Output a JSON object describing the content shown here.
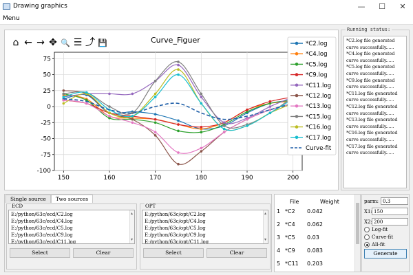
{
  "window": {
    "title": "Drawing graphics",
    "min_glyph": "—",
    "max_glyph": "☐",
    "close_glyph": "✕"
  },
  "menu": {
    "label": "Menu"
  },
  "toolbar": {
    "icons": [
      "home-icon",
      "back-icon",
      "forward-icon",
      "pan-icon",
      "zoom-icon",
      "configure-icon",
      "edit-curve-icon",
      "save-icon"
    ],
    "glyphs": [
      "⌂",
      "←",
      "→",
      "✥",
      "🔍",
      "☰",
      "⤴",
      "💾"
    ]
  },
  "status": {
    "title": "Running status:",
    "lines": [
      "*C2.log file generated",
      "curve successfully......",
      "*C4.log file generated",
      "curve successfully......",
      "*C5.log file generated",
      "curve successfully......",
      "*C9.log file generated",
      "curve successfully......",
      "*C11.log file generated",
      "curve successfully......",
      "*C12.log file generated",
      "curve successfully......",
      "*C13.log file generated",
      "curve successfully......",
      "*C16.log file generated",
      "curve successfully......",
      "*C17.log file generated",
      "curve successfully......"
    ]
  },
  "tabs": [
    {
      "label": "Single source"
    },
    {
      "label": "Two sources"
    }
  ],
  "ecd": {
    "label": "ECD",
    "files": [
      "E:/python/63c/ecd/C2.log",
      "E:/python/63c/ecd/C4.log",
      "E:/python/63c/ecd/C5.log",
      "E:/python/63c/ecd/C9.log",
      "E:/python/63c/ecd/C11.log"
    ],
    "select_label": "Select",
    "clear_label": "Clear"
  },
  "opt": {
    "label": "OPT",
    "files": [
      "E:/python/63c/opt/C2.log",
      "E:/python/63c/opt/C4.log",
      "E:/python/63c/opt/C5.log",
      "E:/python/63c/opt/C9.log",
      "E:/python/63c/opt/C11.log"
    ],
    "select_label": "Select",
    "clear_label": "Clear"
  },
  "table": {
    "headers": [
      "File",
      "Weight"
    ],
    "rows": [
      {
        "num": "1",
        "file": "*C2",
        "weight": "0.042"
      },
      {
        "num": "2",
        "file": "*C4",
        "weight": "0.062"
      },
      {
        "num": "3",
        "file": "*C5",
        "weight": "0.03"
      },
      {
        "num": "4",
        "file": "*C9",
        "weight": "0.083"
      },
      {
        "num": "5",
        "file": "*C11",
        "weight": "0.203"
      }
    ]
  },
  "params": {
    "parm_label": "parm:",
    "parm_value": "0.3",
    "x1_label": "X1:",
    "x1_value": "150",
    "x2_label": "X2:",
    "x2_value": "200",
    "options": [
      {
        "label": "Log-fit",
        "selected": false
      },
      {
        "label": "Curve-fit",
        "selected": false
      },
      {
        "label": "All-fit",
        "selected": true
      }
    ],
    "generate_label": "Generate"
  },
  "chart_data": {
    "type": "line",
    "title": "Curve_Figuer",
    "xlabel": "",
    "ylabel": "",
    "xlim": [
      148,
      202
    ],
    "ylim": [
      -100,
      85
    ],
    "xticks": [
      150,
      160,
      170,
      180,
      190,
      200
    ],
    "yticks": [
      -100,
      -75,
      -50,
      -25,
      0,
      25,
      50,
      75
    ],
    "grid": true,
    "legend_position": "top-right",
    "series": [
      {
        "name": "*C2.log",
        "color": "#1f77b4",
        "style": "solid",
        "x": [
          150,
          155,
          160,
          165,
          170,
          175,
          180,
          185,
          190,
          195,
          200
        ],
        "y": [
          12,
          18,
          -10,
          -8,
          -12,
          -22,
          -35,
          -30,
          -10,
          5,
          10
        ]
      },
      {
        "name": "*C4.log",
        "color": "#ff7f0e",
        "style": "solid",
        "x": [
          150,
          155,
          160,
          165,
          170,
          175,
          180,
          185,
          190,
          195,
          200
        ],
        "y": [
          18,
          12,
          -15,
          -18,
          -20,
          -28,
          -35,
          -25,
          -5,
          5,
          8
        ]
      },
      {
        "name": "*C5.log",
        "color": "#2ca02c",
        "style": "solid",
        "x": [
          150,
          155,
          160,
          165,
          170,
          175,
          180,
          185,
          190,
          195,
          200
        ],
        "y": [
          20,
          10,
          -18,
          -20,
          -25,
          -38,
          -40,
          -28,
          -8,
          5,
          10
        ]
      },
      {
        "name": "*C9.log",
        "color": "#d62728",
        "style": "solid",
        "x": [
          150,
          155,
          160,
          165,
          170,
          175,
          180,
          185,
          190,
          195,
          200
        ],
        "y": [
          10,
          5,
          -10,
          -15,
          -20,
          -28,
          -32,
          -25,
          -5,
          8,
          15
        ]
      },
      {
        "name": "*C11.log",
        "color": "#9467bd",
        "style": "solid",
        "x": [
          150,
          155,
          160,
          165,
          170,
          175,
          180,
          185,
          190,
          195,
          200
        ],
        "y": [
          15,
          20,
          20,
          20,
          40,
          65,
          15,
          -25,
          -18,
          0,
          15
        ]
      },
      {
        "name": "*C12.log",
        "color": "#8c564b",
        "style": "solid",
        "x": [
          150,
          155,
          160,
          165,
          170,
          175,
          180,
          185,
          190,
          195,
          200
        ],
        "y": [
          25,
          20,
          -10,
          -20,
          -45,
          -90,
          -70,
          -40,
          -20,
          -5,
          5
        ]
      },
      {
        "name": "*C13.log",
        "color": "#e377c2",
        "style": "solid",
        "x": [
          150,
          155,
          160,
          165,
          170,
          175,
          180,
          185,
          190,
          195,
          200
        ],
        "y": [
          10,
          5,
          -15,
          -25,
          -40,
          -72,
          -65,
          -40,
          -20,
          -5,
          5
        ]
      },
      {
        "name": "*C15.log",
        "color": "#7f7f7f",
        "style": "solid",
        "x": [
          150,
          155,
          160,
          165,
          170,
          175,
          180,
          185,
          190,
          195,
          200
        ],
        "y": [
          20,
          22,
          0,
          -10,
          40,
          70,
          20,
          -30,
          -28,
          -10,
          15
        ]
      },
      {
        "name": "*C16.log",
        "color": "#bcbd22",
        "style": "solid",
        "x": [
          150,
          155,
          160,
          165,
          170,
          175,
          180,
          185,
          190,
          195,
          200
        ],
        "y": [
          5,
          20,
          -10,
          -15,
          20,
          58,
          5,
          -35,
          -30,
          -10,
          5
        ]
      },
      {
        "name": "*C17.log",
        "color": "#17becf",
        "style": "solid",
        "x": [
          150,
          155,
          160,
          165,
          170,
          175,
          180,
          185,
          190,
          195,
          200
        ],
        "y": [
          15,
          22,
          -5,
          -15,
          15,
          50,
          5,
          -35,
          -30,
          -10,
          12
        ]
      },
      {
        "name": "Curve-fit",
        "color": "#1f5fa8",
        "style": "dashed",
        "x": [
          150,
          155,
          160,
          165,
          170,
          175,
          180,
          185,
          190,
          195,
          200
        ],
        "y": [
          12,
          8,
          -5,
          -10,
          0,
          5,
          -10,
          -20,
          -15,
          -5,
          5
        ]
      }
    ]
  }
}
